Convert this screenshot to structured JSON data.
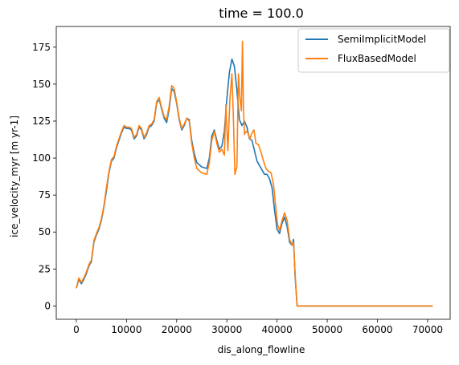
{
  "chart_data": {
    "type": "line",
    "title": "time = 100.0",
    "xlabel": "dis_along_flowline",
    "ylabel": "ice_velocity_myr [m yr-1]",
    "xlim": [
      -4000,
      74500
    ],
    "ylim": [
      -9,
      189
    ],
    "xticks": [
      0,
      10000,
      20000,
      30000,
      40000,
      50000,
      60000,
      70000
    ],
    "yticks": [
      0,
      25,
      50,
      75,
      100,
      125,
      150,
      175
    ],
    "grid": false,
    "legend_position": "top-right",
    "series": [
      {
        "name": "SemiImplicitModel",
        "color": "#1f77b4",
        "points": [
          [
            0,
            12
          ],
          [
            500,
            18
          ],
          [
            1000,
            15
          ],
          [
            1500,
            18
          ],
          [
            2000,
            22
          ],
          [
            2500,
            27
          ],
          [
            3000,
            30
          ],
          [
            3500,
            43
          ],
          [
            4000,
            48
          ],
          [
            4500,
            52
          ],
          [
            5000,
            58
          ],
          [
            5500,
            67
          ],
          [
            6000,
            78
          ],
          [
            6500,
            90
          ],
          [
            7000,
            98
          ],
          [
            7500,
            100
          ],
          [
            8000,
            107
          ],
          [
            8500,
            112
          ],
          [
            9000,
            117
          ],
          [
            9500,
            121
          ],
          [
            10000,
            120
          ],
          [
            10500,
            120
          ],
          [
            11000,
            119
          ],
          [
            11500,
            113
          ],
          [
            12000,
            115
          ],
          [
            12500,
            121
          ],
          [
            13000,
            119
          ],
          [
            13500,
            113
          ],
          [
            14000,
            116
          ],
          [
            14500,
            121
          ],
          [
            15000,
            122
          ],
          [
            15500,
            125
          ],
          [
            16000,
            137
          ],
          [
            16500,
            140
          ],
          [
            17000,
            133
          ],
          [
            17500,
            127
          ],
          [
            18000,
            124
          ],
          [
            18500,
            133
          ],
          [
            19000,
            147
          ],
          [
            19500,
            145
          ],
          [
            20000,
            137
          ],
          [
            20500,
            126
          ],
          [
            21000,
            119
          ],
          [
            21500,
            122
          ],
          [
            22000,
            127
          ],
          [
            22500,
            126
          ],
          [
            23000,
            112
          ],
          [
            23500,
            103
          ],
          [
            24000,
            97
          ],
          [
            25000,
            94
          ],
          [
            26000,
            93
          ],
          [
            26500,
            100
          ],
          [
            27000,
            115
          ],
          [
            27500,
            119
          ],
          [
            28000,
            112
          ],
          [
            28500,
            106
          ],
          [
            29000,
            108
          ],
          [
            29500,
            118
          ],
          [
            30000,
            140
          ],
          [
            30500,
            158
          ],
          [
            31000,
            167
          ],
          [
            31500,
            162
          ],
          [
            32000,
            146
          ],
          [
            32500,
            126
          ],
          [
            33000,
            122
          ],
          [
            33500,
            125
          ],
          [
            34000,
            121
          ],
          [
            34500,
            113
          ],
          [
            35000,
            112
          ],
          [
            35500,
            105
          ],
          [
            36000,
            98
          ],
          [
            36500,
            95
          ],
          [
            37000,
            92
          ],
          [
            37500,
            89
          ],
          [
            38000,
            89
          ],
          [
            38500,
            86
          ],
          [
            39000,
            80
          ],
          [
            39500,
            65
          ],
          [
            40000,
            52
          ],
          [
            40500,
            49
          ],
          [
            41000,
            56
          ],
          [
            41500,
            60
          ],
          [
            42000,
            54
          ],
          [
            42500,
            43
          ],
          [
            43000,
            41
          ],
          [
            43300,
            45
          ],
          [
            43600,
            20
          ],
          [
            44000,
            0
          ],
          [
            71000,
            0
          ]
        ]
      },
      {
        "name": "FluxBasedModel",
        "color": "#ff7f0e",
        "points": [
          [
            0,
            12
          ],
          [
            500,
            19
          ],
          [
            1000,
            16
          ],
          [
            1500,
            19
          ],
          [
            2000,
            23
          ],
          [
            2500,
            28
          ],
          [
            3000,
            31
          ],
          [
            3500,
            44
          ],
          [
            4000,
            49
          ],
          [
            4500,
            53
          ],
          [
            5000,
            59
          ],
          [
            5500,
            68
          ],
          [
            6000,
            80
          ],
          [
            6500,
            91
          ],
          [
            7000,
            99
          ],
          [
            7500,
            101
          ],
          [
            8000,
            108
          ],
          [
            8500,
            113
          ],
          [
            9000,
            118
          ],
          [
            9500,
            122
          ],
          [
            10000,
            121
          ],
          [
            10500,
            121
          ],
          [
            11000,
            120
          ],
          [
            11500,
            114
          ],
          [
            12000,
            116
          ],
          [
            12500,
            122
          ],
          [
            13000,
            120
          ],
          [
            13500,
            114
          ],
          [
            14000,
            117
          ],
          [
            14500,
            122
          ],
          [
            15000,
            123
          ],
          [
            15500,
            126
          ],
          [
            16000,
            138
          ],
          [
            16500,
            141
          ],
          [
            17000,
            134
          ],
          [
            17500,
            128
          ],
          [
            18000,
            126
          ],
          [
            18500,
            135
          ],
          [
            19000,
            149
          ],
          [
            19500,
            147
          ],
          [
            20000,
            138
          ],
          [
            20500,
            127
          ],
          [
            21000,
            120
          ],
          [
            21500,
            123
          ],
          [
            22000,
            127
          ],
          [
            22500,
            125
          ],
          [
            23000,
            110
          ],
          [
            23500,
            100
          ],
          [
            24000,
            93
          ],
          [
            25000,
            90
          ],
          [
            26000,
            89
          ],
          [
            26500,
            97
          ],
          [
            27000,
            112
          ],
          [
            27500,
            118
          ],
          [
            28000,
            110
          ],
          [
            28500,
            104
          ],
          [
            29000,
            106
          ],
          [
            29500,
            102
          ],
          [
            29800,
            136
          ],
          [
            30200,
            105
          ],
          [
            30600,
            140
          ],
          [
            31000,
            157
          ],
          [
            31300,
            128
          ],
          [
            31600,
            89
          ],
          [
            32000,
            94
          ],
          [
            32300,
            157
          ],
          [
            32600,
            140
          ],
          [
            32900,
            132
          ],
          [
            33100,
            179
          ],
          [
            33300,
            135
          ],
          [
            33500,
            116
          ],
          [
            33800,
            118
          ],
          [
            34200,
            117
          ],
          [
            34600,
            113
          ],
          [
            35000,
            117
          ],
          [
            35400,
            119
          ],
          [
            35800,
            110
          ],
          [
            36300,
            109
          ],
          [
            36800,
            104
          ],
          [
            37300,
            98
          ],
          [
            37800,
            93
          ],
          [
            38300,
            91
          ],
          [
            38800,
            90
          ],
          [
            39300,
            82
          ],
          [
            39700,
            68
          ],
          [
            40100,
            55
          ],
          [
            40500,
            51
          ],
          [
            41000,
            58
          ],
          [
            41500,
            63
          ],
          [
            42000,
            58
          ],
          [
            42500,
            45
          ],
          [
            43000,
            41
          ],
          [
            43300,
            43
          ],
          [
            43600,
            22
          ],
          [
            44000,
            0
          ],
          [
            71000,
            0
          ]
        ]
      }
    ]
  }
}
